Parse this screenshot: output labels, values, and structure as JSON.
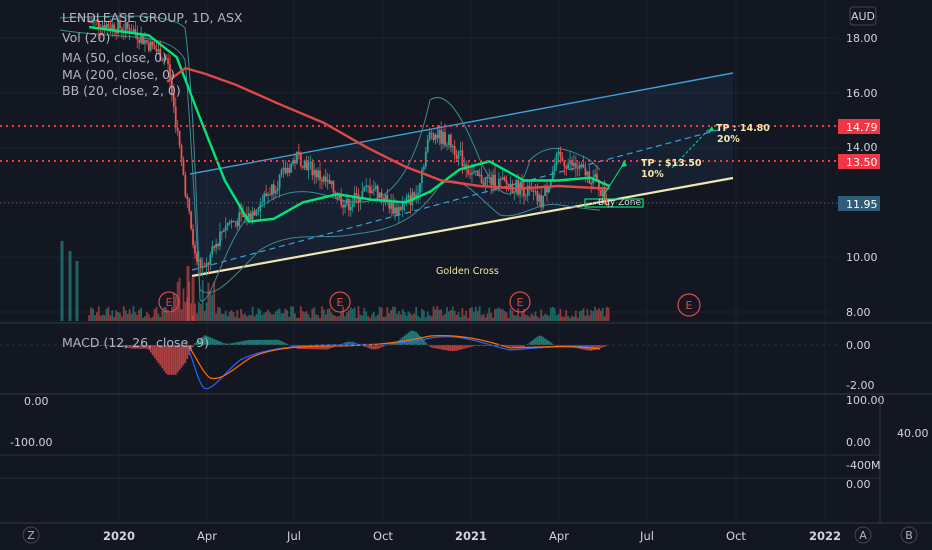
{
  "chart_data": {
    "type": "line",
    "title": "LENDLEASE GROUP, 1D, ASX",
    "currency": "AUD",
    "indicators": [
      "Vol (20)",
      "MA (50, close, 0)",
      "MA (200, close, 0)",
      "BB (20, close, 2, 0)"
    ],
    "macd_label": "MACD (12, 26, close, 9)",
    "y_ticks": [
      "18.00",
      "16.00",
      "14.00",
      "12.00",
      "10.00",
      "8.00"
    ],
    "ylim": [
      7.75,
      18.7
    ],
    "x_ticks": [
      "2020",
      "Apr",
      "Jul",
      "Oct",
      "2021",
      "Apr",
      "Jul",
      "Oct",
      "2022"
    ],
    "macd_ticks": [
      "0.00",
      "-2.00"
    ],
    "lower_ticks_right": [
      "100.00",
      "0.00",
      "-400M",
      "0.00"
    ],
    "lower_ticks_left": [
      "0.00",
      "-100.00"
    ],
    "side_value": "40.00",
    "price_tags": [
      {
        "value": "14.79",
        "color": "#f23645"
      },
      {
        "value": "13.50",
        "color": "#f23645"
      },
      {
        "value": "11.95",
        "color": "#2f5d79"
      }
    ],
    "annotations": {
      "tp1_line1": "TP : 14.80",
      "tp1_line2": "20%",
      "tp2_line1": "TP : $13.50",
      "tp2_line2": "10%",
      "buy_zone": "Buy Zone",
      "golden_cross": "Golden Cross"
    },
    "earnings_marker": "E",
    "bottom_left_icon": "Z",
    "bottom_right_icons": [
      "A",
      "B"
    ],
    "series": [
      {
        "name": "Price",
        "color": "#26a69a",
        "x": [
          "2019-12-01",
          "2020-01-15",
          "2020-02-20",
          "2020-03-20",
          "2020-03-30",
          "2020-04-20",
          "2020-05-15",
          "2020-06-10",
          "2020-07-05",
          "2020-08-01",
          "2020-08-25",
          "2020-09-20",
          "2020-10-15",
          "2020-11-05",
          "2020-11-20",
          "2020-12-10",
          "2021-01-05",
          "2021-02-01",
          "2021-02-25",
          "2021-03-15",
          "2021-04-01",
          "2021-04-25",
          "2021-05-10",
          "2021-05-25"
        ],
        "values": [
          18.6,
          18.3,
          17.2,
          10.0,
          9.5,
          11.2,
          11.5,
          12.6,
          13.7,
          12.8,
          11.9,
          12.6,
          11.7,
          12.3,
          14.6,
          14.2,
          12.9,
          12.7,
          12.5,
          12.0,
          13.6,
          13.2,
          12.8,
          11.95
        ]
      },
      {
        "name": "MA 50",
        "color": "#00e676",
        "x": [
          "2019-12-01",
          "2020-02-01",
          "2020-03-01",
          "2020-03-25",
          "2020-04-20",
          "2020-05-15",
          "2020-06-10",
          "2020-07-10",
          "2020-08-15",
          "2020-09-20",
          "2020-10-25",
          "2020-11-20",
          "2020-12-20",
          "2021-01-20",
          "2021-02-25",
          "2021-04-01",
          "2021-05-05",
          "2021-05-25"
        ],
        "values": [
          18.4,
          18.1,
          17.3,
          15.1,
          12.8,
          11.3,
          11.4,
          12.0,
          12.3,
          12.1,
          12.0,
          12.4,
          13.2,
          13.5,
          12.8,
          12.8,
          12.9,
          12.6
        ]
      },
      {
        "name": "MA 200",
        "color": "#e04848",
        "x": [
          "2020-02-20",
          "2020-03-10",
          "2020-03-30",
          "2020-05-01",
          "2020-06-15",
          "2020-08-01",
          "2020-09-15",
          "2020-10-25",
          "2020-12-01",
          "2021-01-10",
          "2021-02-20",
          "2021-04-01",
          "2021-05-25"
        ],
        "values": [
          16.4,
          16.9,
          16.7,
          16.3,
          15.6,
          14.9,
          14.0,
          13.3,
          12.8,
          12.6,
          12.5,
          12.6,
          12.5
        ]
      }
    ]
  }
}
